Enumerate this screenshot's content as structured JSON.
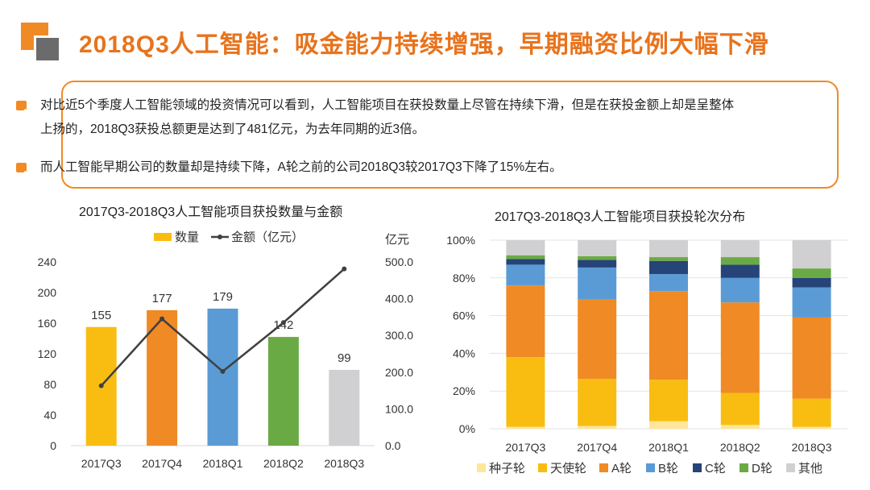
{
  "page": {
    "title": "2018Q3人工智能：吸金能力持续增强，早期融资比例大幅下滑"
  },
  "summary": {
    "bullets": [
      "对比近5个季度人工智能领域的投资情况可以看到，人工智能项目在获投数量上尽管在持续下滑，但是在获投金额上却是呈整体上扬的，2018Q3获投总额更是达到了481亿元，为去年同期的近3倍。",
      "而人工智能早期公司的数量却是持续下降，A轮之前的公司2018Q3较2017Q3下降了15%左右。"
    ]
  },
  "colors": {
    "accent": "#f08a24",
    "title": "#e8731c",
    "logo_gray": "#6b6b6b"
  },
  "chart_data": [
    {
      "type": "bar",
      "title": "2017Q3-2018Q3人工智能项目获投数量与金额",
      "categories": [
        "2017Q3",
        "2017Q4",
        "2018Q1",
        "2018Q2",
        "2018Q3"
      ],
      "series": [
        {
          "name": "数量",
          "type": "bar",
          "axis": "left",
          "values": [
            155,
            177,
            179,
            142,
            99
          ],
          "colors": [
            "#f9bd12",
            "#f08a24",
            "#5b9bd5",
            "#6aaa45",
            "#d0cfd1"
          ]
        },
        {
          "name": "金额（亿元）",
          "type": "line",
          "axis": "right",
          "values": [
            163,
            345,
            202,
            335,
            481
          ],
          "color": "#404040"
        }
      ],
      "ylim": [
        0,
        240
      ],
      "yticks": [
        "0",
        "40",
        "80",
        "120",
        "160",
        "200",
        "240"
      ],
      "y2lim": [
        0,
        520
      ],
      "y2ticks": [
        "0.0",
        "100.0",
        "200.0",
        "300.0",
        "400.0",
        "500.0"
      ],
      "y2label": "亿元",
      "legend": "top"
    },
    {
      "type": "bar",
      "stacked": "percent",
      "title": "2017Q3-2018Q3人工智能项目获投轮次分布",
      "categories": [
        "2017Q3",
        "2017Q4",
        "2018Q1",
        "2018Q2",
        "2018Q3"
      ],
      "series": [
        {
          "name": "种子轮",
          "color": "#ffe699",
          "values": [
            1,
            1.5,
            4,
            2,
            1
          ]
        },
        {
          "name": "天使轮",
          "color": "#f9bd12",
          "values": [
            37,
            25,
            22,
            17,
            15
          ]
        },
        {
          "name": "A轮",
          "color": "#f08a24",
          "values": [
            38,
            42,
            47,
            48,
            43
          ]
        },
        {
          "name": "B轮",
          "color": "#5b9bd5",
          "values": [
            11,
            17,
            9,
            13,
            16
          ]
        },
        {
          "name": "C轮",
          "color": "#264478",
          "values": [
            3,
            4,
            7,
            7,
            5
          ]
        },
        {
          "name": "D轮",
          "color": "#6aaa45",
          "values": [
            2,
            2,
            2,
            4,
            5
          ]
        },
        {
          "name": "其他",
          "color": "#d0cfd1",
          "values": [
            8,
            8.5,
            9,
            9,
            15
          ]
        }
      ],
      "ylim": [
        0,
        100
      ],
      "yticks": [
        "0%",
        "20%",
        "40%",
        "60%",
        "80%",
        "100%"
      ],
      "legend": "bottom"
    }
  ]
}
